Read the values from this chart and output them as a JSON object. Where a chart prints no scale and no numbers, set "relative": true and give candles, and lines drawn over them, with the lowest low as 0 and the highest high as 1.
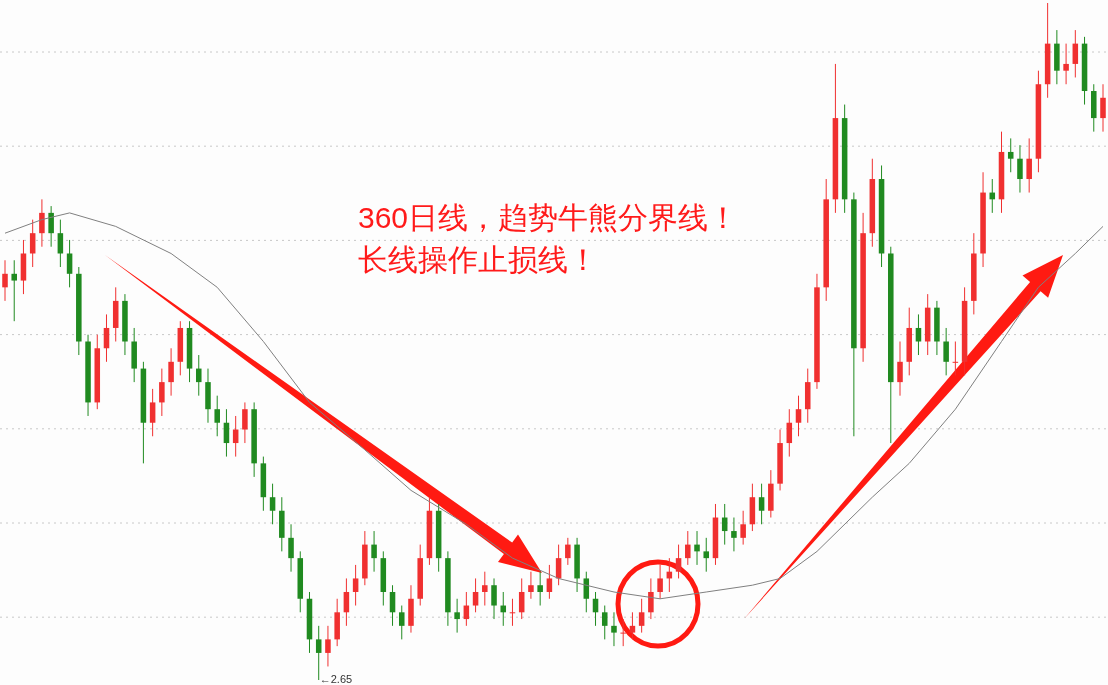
{
  "chart_data": {
    "type": "candlestick",
    "relative": true,
    "grid": true,
    "categories": [
      null,
      null,
      null,
      null,
      null,
      null,
      null,
      null,
      null,
      null,
      null,
      null,
      null,
      null,
      null,
      null,
      null,
      null,
      null,
      null,
      null,
      null,
      null,
      null,
      null,
      null,
      null,
      null,
      null,
      null,
      null,
      null,
      null,
      null,
      null,
      null,
      null,
      null,
      null,
      null,
      null,
      null,
      null,
      null,
      null,
      null,
      null,
      null,
      null,
      null,
      null,
      null,
      null,
      null,
      null,
      null,
      null,
      null,
      null,
      null,
      null,
      null,
      null,
      null,
      null,
      null,
      null,
      null,
      null,
      null,
      null,
      null,
      null,
      null,
      null,
      null,
      null,
      null,
      null,
      null,
      null,
      null,
      null,
      null,
      null,
      null,
      null,
      null,
      null,
      null,
      null,
      null,
      null,
      null,
      null,
      null,
      null,
      null,
      null,
      null,
      null,
      null,
      null,
      null,
      null,
      null,
      null,
      null,
      null,
      null,
      null,
      null,
      null,
      null,
      null,
      null,
      null,
      null,
      null,
      null
    ],
    "ohlc": [
      [
        0.58,
        0.62,
        0.56,
        0.6
      ],
      [
        0.6,
        0.62,
        0.53,
        0.59
      ],
      [
        0.59,
        0.65,
        0.57,
        0.63
      ],
      [
        0.63,
        0.68,
        0.61,
        0.66
      ],
      [
        0.66,
        0.71,
        0.64,
        0.69
      ],
      [
        0.69,
        0.7,
        0.64,
        0.66
      ],
      [
        0.66,
        0.68,
        0.61,
        0.63
      ],
      [
        0.63,
        0.65,
        0.58,
        0.6
      ],
      [
        0.6,
        0.61,
        0.48,
        0.5
      ],
      [
        0.5,
        0.51,
        0.39,
        0.41
      ],
      [
        0.41,
        0.51,
        0.4,
        0.49
      ],
      [
        0.49,
        0.54,
        0.47,
        0.52
      ],
      [
        0.52,
        0.58,
        0.5,
        0.56
      ],
      [
        0.56,
        0.57,
        0.48,
        0.5
      ],
      [
        0.5,
        0.52,
        0.44,
        0.46
      ],
      [
        0.46,
        0.47,
        0.32,
        0.38
      ],
      [
        0.38,
        0.43,
        0.36,
        0.41
      ],
      [
        0.41,
        0.46,
        0.39,
        0.44
      ],
      [
        0.44,
        0.49,
        0.42,
        0.47
      ],
      [
        0.47,
        0.53,
        0.45,
        0.52
      ],
      [
        0.52,
        0.53,
        0.44,
        0.46
      ],
      [
        0.46,
        0.48,
        0.42,
        0.44
      ],
      [
        0.44,
        0.46,
        0.38,
        0.4
      ],
      [
        0.4,
        0.42,
        0.36,
        0.38
      ],
      [
        0.38,
        0.4,
        0.33,
        0.35
      ],
      [
        0.35,
        0.39,
        0.33,
        0.37
      ],
      [
        0.37,
        0.41,
        0.35,
        0.4
      ],
      [
        0.4,
        0.41,
        0.3,
        0.32
      ],
      [
        0.32,
        0.33,
        0.25,
        0.27
      ],
      [
        0.27,
        0.29,
        0.23,
        0.25
      ],
      [
        0.25,
        0.27,
        0.19,
        0.21
      ],
      [
        0.21,
        0.23,
        0.16,
        0.18
      ],
      [
        0.18,
        0.19,
        0.1,
        0.12
      ],
      [
        0.12,
        0.13,
        0.04,
        0.06
      ],
      [
        0.06,
        0.08,
        0.0,
        0.04
      ],
      [
        0.04,
        0.08,
        0.02,
        0.06
      ],
      [
        0.06,
        0.12,
        0.05,
        0.1
      ],
      [
        0.1,
        0.15,
        0.08,
        0.13
      ],
      [
        0.13,
        0.17,
        0.11,
        0.15
      ],
      [
        0.15,
        0.22,
        0.14,
        0.2
      ],
      [
        0.2,
        0.22,
        0.16,
        0.18
      ],
      [
        0.18,
        0.19,
        0.11,
        0.13
      ],
      [
        0.13,
        0.14,
        0.08,
        0.1
      ],
      [
        0.1,
        0.11,
        0.06,
        0.08
      ],
      [
        0.08,
        0.14,
        0.07,
        0.12
      ],
      [
        0.12,
        0.2,
        0.11,
        0.18
      ],
      [
        0.18,
        0.27,
        0.17,
        0.25
      ],
      [
        0.25,
        0.26,
        0.16,
        0.18
      ],
      [
        0.18,
        0.19,
        0.08,
        0.1
      ],
      [
        0.1,
        0.12,
        0.07,
        0.09
      ],
      [
        0.09,
        0.13,
        0.08,
        0.11
      ],
      [
        0.11,
        0.15,
        0.1,
        0.13
      ],
      [
        0.13,
        0.16,
        0.11,
        0.14
      ],
      [
        0.14,
        0.15,
        0.09,
        0.11
      ],
      [
        0.11,
        0.13,
        0.08,
        0.1
      ],
      [
        0.1,
        0.12,
        0.08,
        0.1
      ],
      [
        0.1,
        0.15,
        0.09,
        0.13
      ],
      [
        0.13,
        0.16,
        0.12,
        0.14
      ],
      [
        0.14,
        0.16,
        0.11,
        0.13
      ],
      [
        0.13,
        0.17,
        0.12,
        0.15
      ],
      [
        0.15,
        0.2,
        0.14,
        0.18
      ],
      [
        0.18,
        0.21,
        0.17,
        0.2
      ],
      [
        0.2,
        0.21,
        0.13,
        0.15
      ],
      [
        0.15,
        0.16,
        0.1,
        0.12
      ],
      [
        0.12,
        0.13,
        0.08,
        0.1
      ],
      [
        0.1,
        0.11,
        0.06,
        0.08
      ],
      [
        0.08,
        0.1,
        0.05,
        0.07
      ],
      [
        0.07,
        0.09,
        0.05,
        0.07
      ],
      [
        0.07,
        0.1,
        0.06,
        0.08
      ],
      [
        0.08,
        0.12,
        0.07,
        0.1
      ],
      [
        0.1,
        0.15,
        0.09,
        0.13
      ],
      [
        0.13,
        0.17,
        0.12,
        0.15
      ],
      [
        0.15,
        0.18,
        0.13,
        0.16
      ],
      [
        0.16,
        0.2,
        0.15,
        0.18
      ],
      [
        0.18,
        0.22,
        0.17,
        0.2
      ],
      [
        0.2,
        0.22,
        0.17,
        0.19
      ],
      [
        0.19,
        0.21,
        0.16,
        0.18
      ],
      [
        0.18,
        0.26,
        0.17,
        0.24
      ],
      [
        0.24,
        0.26,
        0.2,
        0.22
      ],
      [
        0.22,
        0.24,
        0.19,
        0.21
      ],
      [
        0.21,
        0.25,
        0.2,
        0.23
      ],
      [
        0.23,
        0.29,
        0.22,
        0.27
      ],
      [
        0.27,
        0.29,
        0.23,
        0.25
      ],
      [
        0.25,
        0.31,
        0.24,
        0.29
      ],
      [
        0.29,
        0.37,
        0.28,
        0.35
      ],
      [
        0.35,
        0.4,
        0.33,
        0.38
      ],
      [
        0.38,
        0.42,
        0.36,
        0.4
      ],
      [
        0.4,
        0.46,
        0.38,
        0.44
      ],
      [
        0.44,
        0.6,
        0.43,
        0.58
      ],
      [
        0.58,
        0.74,
        0.56,
        0.71
      ],
      [
        0.71,
        0.91,
        0.69,
        0.83
      ],
      [
        0.83,
        0.85,
        0.69,
        0.71
      ],
      [
        0.71,
        0.72,
        0.36,
        0.49
      ],
      [
        0.49,
        0.69,
        0.47,
        0.66
      ],
      [
        0.66,
        0.77,
        0.64,
        0.74
      ],
      [
        0.74,
        0.76,
        0.61,
        0.63
      ],
      [
        0.63,
        0.64,
        0.35,
        0.44
      ],
      [
        0.44,
        0.5,
        0.42,
        0.47
      ],
      [
        0.47,
        0.55,
        0.45,
        0.52
      ],
      [
        0.52,
        0.54,
        0.48,
        0.5
      ],
      [
        0.5,
        0.57,
        0.48,
        0.55
      ],
      [
        0.55,
        0.56,
        0.48,
        0.5
      ],
      [
        0.5,
        0.52,
        0.45,
        0.47
      ],
      [
        0.47,
        0.5,
        0.45,
        0.47
      ],
      [
        0.47,
        0.58,
        0.45,
        0.56
      ],
      [
        0.56,
        0.66,
        0.54,
        0.63
      ],
      [
        0.63,
        0.75,
        0.61,
        0.72
      ],
      [
        0.72,
        0.74,
        0.69,
        0.71
      ],
      [
        0.71,
        0.81,
        0.69,
        0.78
      ],
      [
        0.78,
        0.8,
        0.75,
        0.77
      ],
      [
        0.77,
        0.79,
        0.72,
        0.74
      ],
      [
        0.74,
        0.8,
        0.72,
        0.77
      ],
      [
        0.77,
        0.9,
        0.75,
        0.88
      ],
      [
        0.88,
        1.0,
        0.86,
        0.94
      ],
      [
        0.94,
        0.96,
        0.88,
        0.9
      ],
      [
        0.9,
        0.94,
        0.88,
        0.91
      ],
      [
        0.91,
        0.96,
        0.89,
        0.94
      ],
      [
        0.94,
        0.95,
        0.85,
        0.87
      ],
      [
        0.87,
        0.88,
        0.81,
        0.83
      ],
      [
        0.83,
        0.88,
        0.81,
        0.86
      ]
    ],
    "series": [
      {
        "type": "line",
        "color": "#808080",
        "values": [
          0.66,
          null,
          null,
          null,
          0.68,
          null,
          null,
          0.69,
          null,
          null,
          null,
          null,
          0.67,
          null,
          null,
          null,
          null,
          null,
          0.63,
          null,
          null,
          null,
          null,
          0.58,
          null,
          null,
          null,
          null,
          0.5,
          null,
          null,
          null,
          null,
          0.41,
          null,
          null,
          null,
          null,
          null,
          0.34,
          null,
          null,
          null,
          null,
          0.28,
          null,
          null,
          null,
          null,
          null,
          0.23,
          null,
          null,
          null,
          null,
          0.18,
          null,
          null,
          null,
          null,
          0.15,
          null,
          null,
          null,
          null,
          null,
          0.13,
          null,
          null,
          null,
          null,
          0.12,
          null,
          null,
          null,
          null,
          0.13,
          null,
          null,
          null,
          null,
          0.14,
          null,
          null,
          0.15,
          null,
          null,
          null,
          0.19,
          null,
          null,
          null,
          null,
          null,
          0.27,
          null,
          null,
          null,
          0.32,
          null,
          null,
          null,
          null,
          0.4,
          null,
          null,
          null,
          null,
          0.5,
          null,
          null,
          null,
          0.58,
          null,
          null,
          null,
          0.63,
          null,
          null,
          0.67
        ]
      }
    ],
    "annotations": [
      "360日线，趋势牛熊分界线！",
      "长线操作止损线！",
      "←2.65"
    ]
  }
}
